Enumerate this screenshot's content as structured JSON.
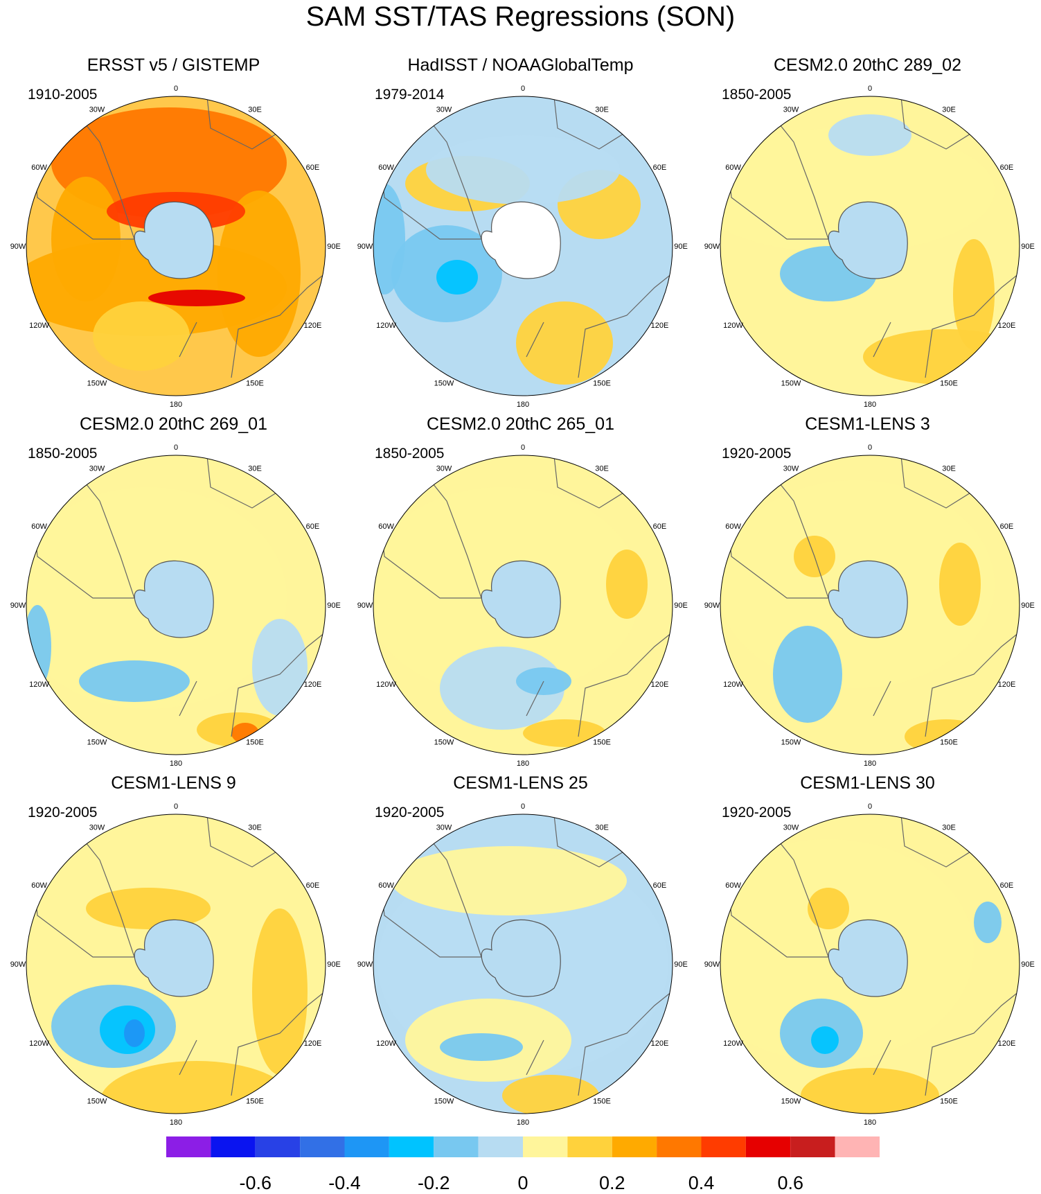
{
  "title": "SAM SST/TAS Regressions (SON)",
  "panels": [
    {
      "title": "ERSST v5 / GISTEMP",
      "period": "1910-2005",
      "base": "#ffc84b",
      "missing_antarctica": false
    },
    {
      "title": "HadISST / NOAAGlobalTemp",
      "period": "1979-2014",
      "base": "#b7dcf2",
      "missing_antarctica": true
    },
    {
      "title": "CESM2.0 20thC 289_02",
      "period": "1850-2005",
      "base": "#fff59b",
      "missing_antarctica": false
    },
    {
      "title": "CESM2.0 20thC 269_01",
      "period": "1850-2005",
      "base": "#fff59b",
      "missing_antarctica": false
    },
    {
      "title": "CESM2.0 20thC 265_01",
      "period": "1850-2005",
      "base": "#fff59b",
      "missing_antarctica": false
    },
    {
      "title": "CESM1-LENS 3",
      "period": "1920-2005",
      "base": "#fff59b",
      "missing_antarctica": false
    },
    {
      "title": "CESM1-LENS 9",
      "period": "1920-2005",
      "base": "#fff59b",
      "missing_antarctica": false
    },
    {
      "title": "CESM1-LENS 25",
      "period": "1920-2005",
      "base": "#b7dcf2",
      "missing_antarctica": false
    },
    {
      "title": "CESM1-LENS 30",
      "period": "1920-2005",
      "base": "#fff59b",
      "missing_antarctica": false
    }
  ],
  "longitude_labels": [
    "0",
    "30E",
    "60E",
    "90E",
    "120E",
    "150E",
    "180",
    "150W",
    "120W",
    "90W",
    "60W",
    "30W"
  ],
  "colorbar": {
    "colors": [
      "#8c1ee6",
      "#0a14f0",
      "#2841e6",
      "#3270e6",
      "#1e96f5",
      "#00c3ff",
      "#78c8f0",
      "#b7dcf2",
      "#fff59b",
      "#ffd23c",
      "#ffaa00",
      "#ff7800",
      "#ff3c00",
      "#e60000",
      "#c81e1e",
      "#ffb4b4"
    ],
    "tick_labels": [
      "-0.6",
      "-0.4",
      "-0.2",
      "0",
      "0.2",
      "0.4",
      "0.6"
    ]
  }
}
